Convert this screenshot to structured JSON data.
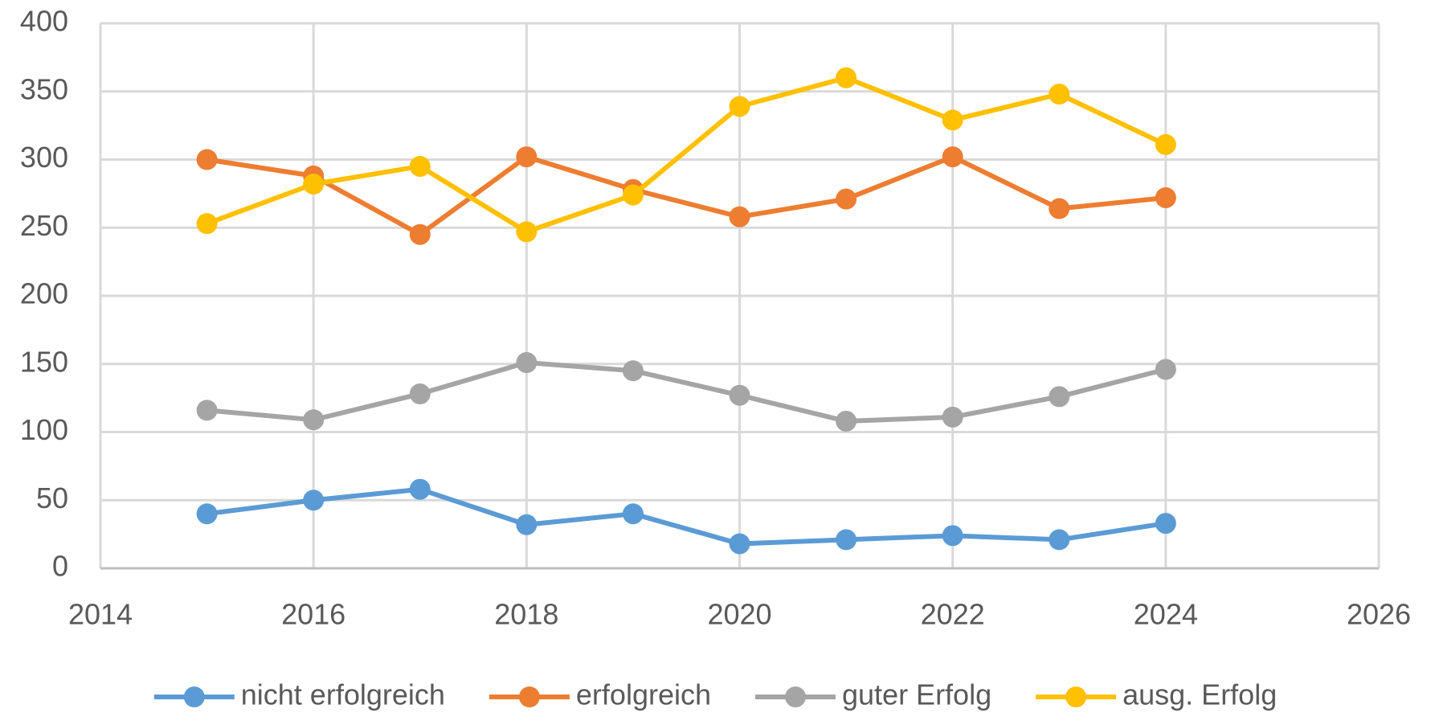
{
  "chart_data": {
    "type": "line",
    "x": [
      2015,
      2016,
      2017,
      2018,
      2019,
      2020,
      2021,
      2022,
      2023,
      2024
    ],
    "series": [
      {
        "name": "nicht erfolgreich",
        "color": "#5b9bd5",
        "values": [
          40,
          50,
          58,
          32,
          40,
          18,
          21,
          24,
          21,
          33
        ]
      },
      {
        "name": "erfolgreich",
        "color": "#ed7d31",
        "values": [
          300,
          288,
          245,
          302,
          278,
          258,
          271,
          302,
          264,
          272
        ]
      },
      {
        "name": "guter Erfolg",
        "color": "#a5a5a5",
        "values": [
          116,
          109,
          128,
          151,
          145,
          127,
          108,
          111,
          126,
          146
        ]
      },
      {
        "name": "ausg. Erfolg",
        "color": "#ffc000",
        "values": [
          253,
          282,
          295,
          247,
          274,
          339,
          360,
          329,
          348,
          311
        ]
      }
    ],
    "xlim": [
      2014,
      2026
    ],
    "xticks": [
      2014,
      2016,
      2018,
      2020,
      2022,
      2024,
      2026
    ],
    "ylim": [
      0,
      400
    ],
    "yticks": [
      0,
      50,
      100,
      150,
      200,
      250,
      300,
      350,
      400
    ],
    "grid": true,
    "legend": "bottom"
  }
}
